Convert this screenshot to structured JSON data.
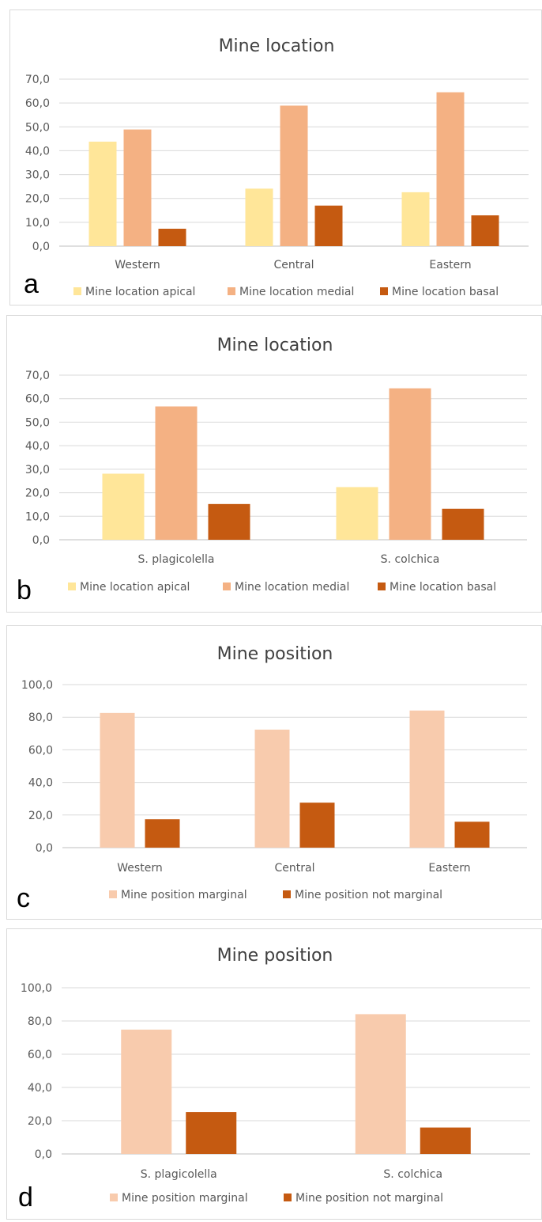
{
  "chart_data": [
    {
      "type": "bar",
      "panel_label": "a",
      "title": "Mine location",
      "categories": [
        "Western",
        "Central",
        "Eastern"
      ],
      "series": [
        {
          "name": "Mine location apical",
          "values": [
            43.8,
            24.1,
            22.6
          ],
          "color": "#FFE699"
        },
        {
          "name": "Mine location medial",
          "values": [
            48.9,
            58.9,
            64.5
          ],
          "color": "#F4B183"
        },
        {
          "name": "Mine location basal",
          "values": [
            7.3,
            17.0,
            12.9
          ],
          "color": "#C55A11"
        }
      ],
      "ylim": [
        0,
        70
      ],
      "yticks": [
        "0,0",
        "10,0",
        "20,0",
        "30,0",
        "40,0",
        "50,0",
        "60,0",
        "70,0"
      ],
      "grid": true,
      "legend": "bottom"
    },
    {
      "type": "bar",
      "panel_label": "b",
      "title": "Mine location",
      "categories": [
        "S. plagicolella",
        "S. colchica"
      ],
      "series": [
        {
          "name": "Mine location apical",
          "values": [
            28.1,
            22.4
          ],
          "color": "#FFE699"
        },
        {
          "name": "Mine location medial",
          "values": [
            56.7,
            64.4
          ],
          "color": "#F4B183"
        },
        {
          "name": "Mine location basal",
          "values": [
            15.2,
            13.2
          ],
          "color": "#C55A11"
        }
      ],
      "ylim": [
        0,
        70
      ],
      "yticks": [
        "0,0",
        "10,0",
        "20,0",
        "30,0",
        "40,0",
        "50,0",
        "60,0",
        "70,0"
      ],
      "grid": true,
      "legend": "bottom"
    },
    {
      "type": "bar",
      "panel_label": "c",
      "title": "Mine position",
      "categories": [
        "Western",
        "Central",
        "Eastern"
      ],
      "series": [
        {
          "name": "Mine position marginal",
          "values": [
            82.6,
            72.4,
            84.1
          ],
          "color": "#F8CBAD"
        },
        {
          "name": "Mine position not marginal",
          "values": [
            17.4,
            27.6,
            15.9
          ],
          "color": "#C55A11"
        }
      ],
      "ylim": [
        0,
        100
      ],
      "yticks": [
        "0,0",
        "20,0",
        "40,0",
        "60,0",
        "80,0",
        "100,0"
      ],
      "grid": true,
      "legend": "bottom"
    },
    {
      "type": "bar",
      "panel_label": "d",
      "title": "Mine position",
      "categories": [
        "S. plagicolella",
        "S. colchica"
      ],
      "series": [
        {
          "name": "Mine position marginal",
          "values": [
            74.8,
            84.1
          ],
          "color": "#F8CBAD"
        },
        {
          "name": "Mine position not marginal",
          "values": [
            25.2,
            15.9
          ],
          "color": "#C55A11"
        }
      ],
      "ylim": [
        0,
        100
      ],
      "yticks": [
        "0,0",
        "20,0",
        "40,0",
        "60,0",
        "80,0",
        "100,0"
      ],
      "grid": true,
      "legend": "bottom"
    }
  ]
}
